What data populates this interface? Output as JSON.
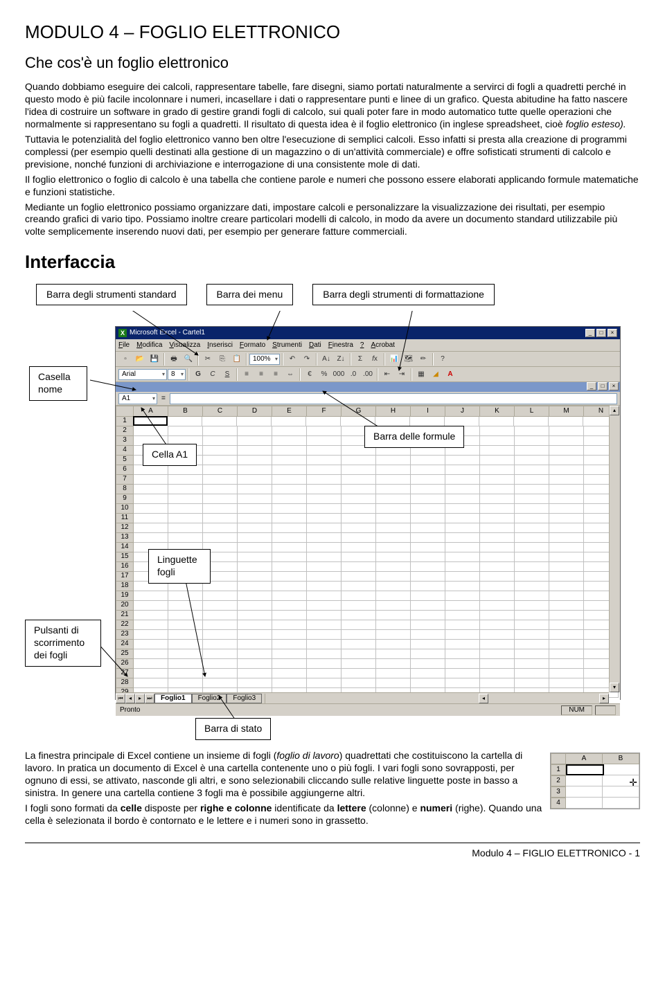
{
  "page": {
    "title": "MODULO 4 – FOGLIO ELETTRONICO",
    "subtitle": "Che cos'è un foglio elettronico",
    "para1": "Quando dobbiamo eseguire dei calcoli, rappresentare tabelle, fare disegni, siamo portati naturalmente a servirci di fogli a quadretti perché in questo modo è più facile incolonnare i numeri, incasellare i dati o rappresentare punti e linee di un grafico. Questa abitudine ha fatto nascere l'idea di costruire un software in grado di gestire grandi fogli di calcolo, sui quali poter fare in modo automatico tutte quelle operazioni che normalmente si rappresentano su fogli a quadretti. Il risultato di questa idea è il foglio elettronico (in inglese spreadsheet, cioè ",
    "para1_it": "foglio esteso).",
    "para2": "Tuttavia le potenzialità del foglio elettronico vanno ben oltre l'esecuzione di semplici calcoli. Esso infatti si presta alla creazione di programmi complessi (per esempio quelli destinati alla gestione di un magazzino o di un'attività commerciale) e offre sofisticati strumenti di calcolo e previsione, nonché funzioni di archiviazione e interrogazione di una consistente mole di dati.",
    "para3": "Il foglio elettronico o foglio di calcolo è una tabella che contiene parole e numeri che possono essere elaborati applicando formule matematiche e funzioni statistiche.",
    "para4": "Mediante un foglio elettronico possiamo organizzare dati, impostare calcoli e personalizzare la visualizzazione dei risultati, per esempio creando grafici di vario tipo. Possiamo inoltre creare particolari modelli di calcolo, in modo da avere un documento standard utilizzabile più volte semplicemente inserendo nuovi dati, per esempio per generare fatture commerciali.",
    "h_interfaccia": "Interfaccia",
    "labels": {
      "standard": "Barra degli strumenti standard",
      "menu": "Barra dei menu",
      "format": "Barra degli strumenti di formattazione",
      "casella": "Casella nome",
      "cella": "Cella A1",
      "formule": "Barra delle formule",
      "linguette": "Linguette fogli",
      "scorrimento": "Pulsanti di scorrimento dei fogli",
      "stato": "Barra di stato"
    },
    "bottom1a": "La finestra principale di Excel contiene un insieme di fogli (",
    "bottom1b": "foglio di lavoro",
    "bottom1c": ") quadrettati che costituiscono la cartella di lavoro. In pratica un documento di Excel è una cartella contenente uno o più fogli. I vari fogli sono sovrapposti, per ognuno di essi, se attivato, nasconde gli altri, e sono selezionabili cliccando sulle relative linguette poste in basso a sinistra. In genere una cartella contiene 3 fogli ma è possibile aggiungerne altri.",
    "bottom2a": "I fogli sono formati da ",
    "bottom2b": "celle",
    "bottom2c": " disposte per ",
    "bottom2d": "righe e colonne",
    "bottom2e": " identificate da ",
    "bottom2f": "lettere",
    "bottom2g": " (colonne) e ",
    "bottom2h": "numeri",
    "bottom2i": " (righe). Quando una cella è selezionata il bordo è contornato e le lettere e i numeri sono in grassetto.",
    "footer": "Modulo 4 – FIGLIO ELETTRONICO - 1"
  },
  "excel": {
    "title": "Microsoft Excel - Cartel1",
    "menu": [
      "File",
      "Modifica",
      "Visualizza",
      "Inserisci",
      "Formato",
      "Strumenti",
      "Dati",
      "Finestra",
      "?",
      "Acrobat"
    ],
    "font": "Arial",
    "fontsize": "8",
    "zoom": "100%",
    "namebox": "A1",
    "columns": [
      "A",
      "B",
      "C",
      "D",
      "E",
      "F",
      "G",
      "H",
      "I",
      "J",
      "K",
      "L",
      "M",
      "N"
    ],
    "rows": 29,
    "sheets": [
      "Foglio1",
      "Foglio2",
      "Foglio3"
    ],
    "status": "Pronto",
    "num": "NUM"
  },
  "mini": {
    "cols": [
      "A",
      "B"
    ],
    "rows": [
      "1",
      "2",
      "3",
      "4"
    ]
  },
  "colors": {
    "win_bg": "#d4d0c8",
    "title_bg": "#0a246a",
    "border": "#aca899",
    "grid": "#c0c0c0"
  }
}
